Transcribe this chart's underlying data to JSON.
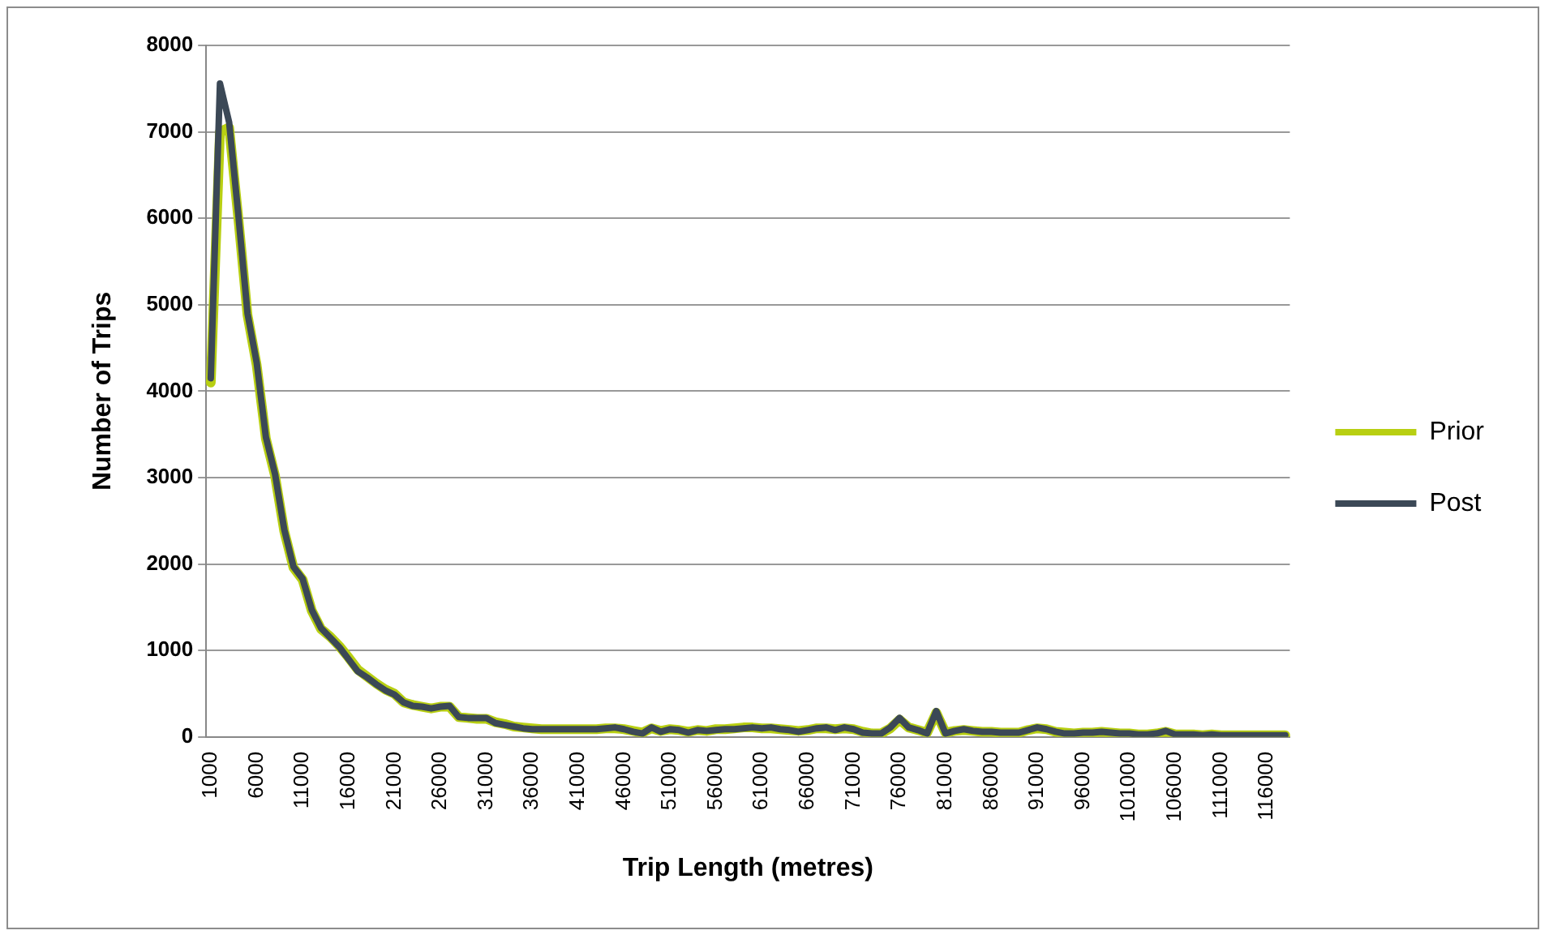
{
  "chart_data": {
    "type": "line",
    "xlabel": "Trip Length (metres)",
    "ylabel": "Number of Trips",
    "categories": [
      "1000",
      null,
      null,
      null,
      null,
      "6000",
      null,
      null,
      null,
      null,
      "11000",
      null,
      null,
      null,
      null,
      "16000",
      null,
      null,
      null,
      null,
      "21000",
      null,
      null,
      null,
      null,
      "26000",
      null,
      null,
      null,
      null,
      "31000",
      null,
      null,
      null,
      null,
      "36000",
      null,
      null,
      null,
      null,
      "41000",
      null,
      null,
      null,
      null,
      "46000",
      null,
      null,
      null,
      null,
      "51000",
      null,
      null,
      null,
      null,
      "56000",
      null,
      null,
      null,
      null,
      "61000",
      null,
      null,
      null,
      null,
      "66000",
      null,
      null,
      null,
      null,
      "71000",
      null,
      null,
      null,
      null,
      "76000",
      null,
      null,
      null,
      null,
      "81000",
      null,
      null,
      null,
      null,
      "86000",
      null,
      null,
      null,
      null,
      "91000",
      null,
      null,
      null,
      null,
      "96000",
      null,
      null,
      null,
      null,
      "101000",
      null,
      null,
      null,
      null,
      "106000",
      null,
      null,
      null,
      null,
      "111000",
      null,
      null,
      null,
      null,
      "116000",
      null,
      null
    ],
    "series": [
      {
        "name": "Prior",
        "color": "#b8cf12",
        "values": [
          4100,
          7000,
          7050,
          6000,
          4880,
          4300,
          3450,
          3020,
          2380,
          1960,
          1820,
          1460,
          1250,
          1160,
          1050,
          920,
          780,
          700,
          620,
          550,
          500,
          400,
          370,
          350,
          330,
          350,
          350,
          230,
          220,
          210,
          210,
          170,
          150,
          120,
          110,
          100,
          90,
          90,
          90,
          90,
          90,
          90,
          90,
          100,
          100,
          90,
          70,
          50,
          100,
          70,
          90,
          80,
          60,
          80,
          70,
          90,
          90,
          100,
          110,
          110,
          100,
          100,
          90,
          80,
          70,
          80,
          100,
          100,
          90,
          100,
          90,
          60,
          40,
          40,
          100,
          200,
          110,
          80,
          50,
          280,
          50,
          70,
          80,
          70,
          60,
          60,
          50,
          50,
          50,
          80,
          100,
          90,
          60,
          50,
          40,
          50,
          50,
          60,
          50,
          40,
          40,
          30,
          30,
          40,
          60,
          30,
          30,
          30,
          20,
          30,
          20,
          20,
          20,
          20,
          20,
          20,
          20,
          20
        ]
      },
      {
        "name": "Post",
        "color": "#3b4856",
        "values": [
          4150,
          7560,
          7110,
          6040,
          4900,
          4330,
          3470,
          3040,
          2400,
          1970,
          1830,
          1470,
          1260,
          1150,
          1040,
          900,
          760,
          690,
          610,
          540,
          490,
          400,
          360,
          350,
          330,
          350,
          360,
          230,
          220,
          220,
          220,
          160,
          140,
          120,
          100,
          90,
          90,
          90,
          90,
          90,
          90,
          90,
          90,
          100,
          110,
          90,
          60,
          40,
          110,
          60,
          90,
          80,
          50,
          80,
          70,
          80,
          90,
          90,
          100,
          110,
          100,
          110,
          90,
          80,
          60,
          80,
          100,
          110,
          80,
          110,
          90,
          50,
          40,
          40,
          110,
          220,
          110,
          80,
          40,
          300,
          40,
          70,
          90,
          70,
          60,
          60,
          50,
          50,
          50,
          80,
          110,
          90,
          60,
          40,
          40,
          50,
          50,
          60,
          50,
          40,
          40,
          30,
          30,
          40,
          70,
          30,
          30,
          30,
          20,
          30,
          20,
          20,
          20,
          20,
          20,
          20,
          20,
          20
        ]
      }
    ],
    "ylim": [
      0,
      8000
    ],
    "yticks": [
      0,
      1000,
      2000,
      3000,
      4000,
      5000,
      6000,
      7000,
      8000
    ],
    "grid": "y",
    "legend": "right",
    "marker": "none"
  }
}
